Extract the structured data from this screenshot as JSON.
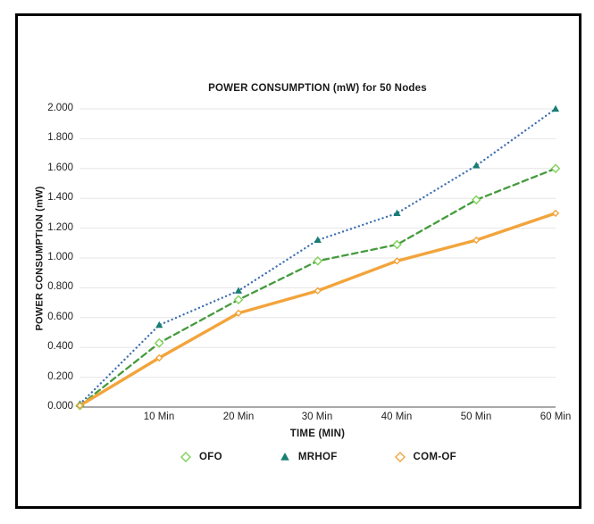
{
  "chart_data": {
    "type": "line",
    "title": "POWER CONSUMPTION (mW) for 50 Nodes",
    "xlabel": "TIME (MIN)",
    "ylabel": "POWER CONSUMPTION (mW)",
    "x_values": [
      0,
      10,
      20,
      30,
      40,
      50,
      60
    ],
    "x_tick_labels": [
      "10 Min",
      "20 Min",
      "30 Min",
      "40 Min",
      "50 Min",
      "60 Min"
    ],
    "y_tick_labels": [
      "2.000",
      "1.800",
      "1.600",
      "1.400",
      "1.200",
      "1.000",
      "0.800",
      "0.600",
      "0.400",
      "0.200",
      "0.000"
    ],
    "ylim": [
      0,
      2.0
    ],
    "grid": true,
    "legend_position": "bottom",
    "colors": {
      "gridline": "#E6E6E6",
      "axis_line": "#8C8C8C",
      "text": "#1a1a1a"
    },
    "series": [
      {
        "name": "OFO",
        "values": [
          0.01,
          0.43,
          0.72,
          0.98,
          1.09,
          1.39,
          1.6
        ],
        "color": "#459B3D",
        "style": "dashed",
        "marker": "diamond-open",
        "marker_color": "#7ED157"
      },
      {
        "name": "MRHOF",
        "values": [
          0.02,
          0.55,
          0.78,
          1.12,
          1.3,
          1.62,
          2.0
        ],
        "color": "#3D6EB0",
        "style": "dotted",
        "marker": "triangle-filled",
        "marker_color": "#177E72"
      },
      {
        "name": "COM-OF",
        "values": [
          0.01,
          0.33,
          0.63,
          0.78,
          0.98,
          1.12,
          1.3
        ],
        "color": "#F2A43B",
        "style": "solid",
        "marker": "diamond-open-small",
        "marker_color": "#F2A43B"
      }
    ]
  }
}
